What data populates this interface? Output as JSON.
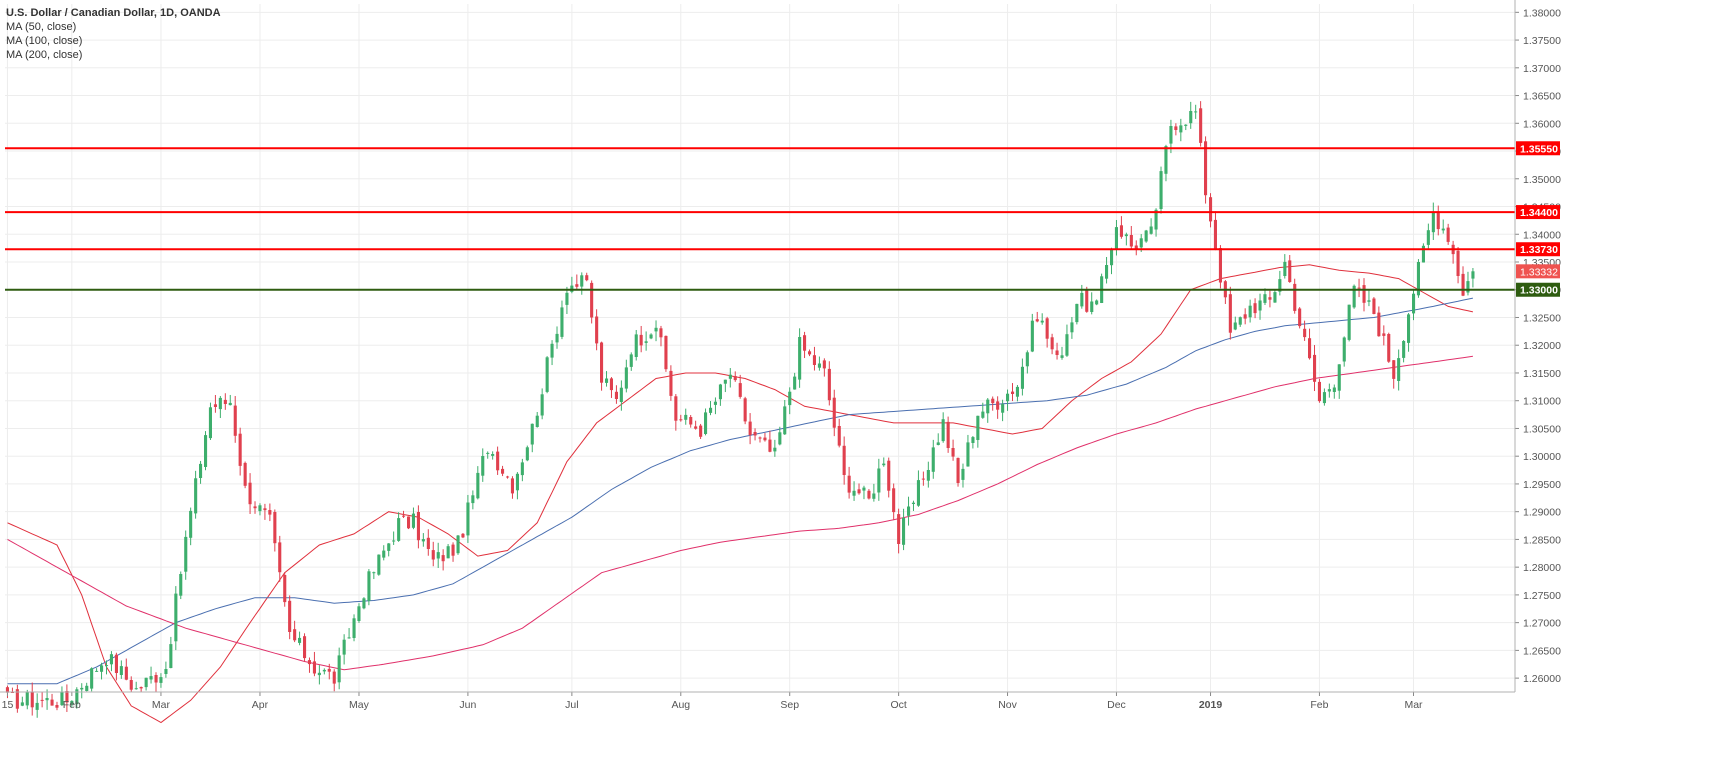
{
  "chart_data": {
    "type": "candlestick",
    "title": "U.S. Dollar / Canadian Dollar, 1D, OANDA",
    "indicators": [
      "MA (50, close)",
      "MA (100, close)",
      "MA (200, close)"
    ],
    "ylim": [
      1.2575,
      1.3815
    ],
    "y_ticks": [
      "1.38000",
      "1.37500",
      "1.37000",
      "1.36500",
      "1.36000",
      "1.35500",
      "1.35000",
      "1.34500",
      "1.34000",
      "1.33500",
      "1.33000",
      "1.32500",
      "1.32000",
      "1.31500",
      "1.31000",
      "1.30500",
      "1.30000",
      "1.29500",
      "1.29000",
      "1.28500",
      "1.28000",
      "1.27500",
      "1.27000",
      "1.26500",
      "1.26000"
    ],
    "x_labels": [
      "15",
      "Feb",
      "Mar",
      "Apr",
      "May",
      "Jun",
      "Jul",
      "Aug",
      "Sep",
      "Oct",
      "Nov",
      "Dec",
      "2019",
      "Feb",
      "Mar"
    ],
    "x_label_index": [
      0,
      13,
      31,
      51,
      71,
      93,
      114,
      136,
      158,
      180,
      202,
      224,
      243,
      265,
      284
    ],
    "bar_count": 305,
    "waypoints": [
      [
        0,
        1.256
      ],
      [
        8,
        1.256
      ],
      [
        12,
        1.256
      ],
      [
        16,
        1.26
      ],
      [
        20,
        1.264
      ],
      [
        26,
        1.258
      ],
      [
        32,
        1.262
      ],
      [
        36,
        1.285
      ],
      [
        41,
        1.309
      ],
      [
        45,
        1.31
      ],
      [
        48,
        1.294
      ],
      [
        53,
        1.288
      ],
      [
        57,
        1.268
      ],
      [
        62,
        1.262
      ],
      [
        66,
        1.26
      ],
      [
        72,
        1.276
      ],
      [
        79,
        1.288
      ],
      [
        82,
        1.288
      ],
      [
        86,
        1.281
      ],
      [
        91,
        1.284
      ],
      [
        97,
        1.302
      ],
      [
        102,
        1.295
      ],
      [
        106,
        1.305
      ],
      [
        110,
        1.32
      ],
      [
        113,
        1.331
      ],
      [
        117,
        1.331
      ],
      [
        120,
        1.314
      ],
      [
        123,
        1.31
      ],
      [
        126,
        1.32
      ],
      [
        131,
        1.324
      ],
      [
        135,
        1.307
      ],
      [
        140,
        1.305
      ],
      [
        146,
        1.315
      ],
      [
        150,
        1.304
      ],
      [
        155,
        1.3
      ],
      [
        160,
        1.32
      ],
      [
        165,
        1.315
      ],
      [
        169,
        1.296
      ],
      [
        174,
        1.292
      ],
      [
        177,
        1.3
      ],
      [
        180,
        1.285
      ],
      [
        184,
        1.294
      ],
      [
        189,
        1.306
      ],
      [
        192,
        1.295
      ],
      [
        196,
        1.308
      ],
      [
        200,
        1.31
      ],
      [
        204,
        1.313
      ],
      [
        208,
        1.326
      ],
      [
        212,
        1.317
      ],
      [
        216,
        1.328
      ],
      [
        220,
        1.327
      ],
      [
        224,
        1.342
      ],
      [
        227,
        1.338
      ],
      [
        231,
        1.34
      ],
      [
        235,
        1.36
      ],
      [
        240,
        1.362
      ],
      [
        242,
        1.348
      ],
      [
        244,
        1.338
      ],
      [
        247,
        1.322
      ],
      [
        251,
        1.327
      ],
      [
        255,
        1.328
      ],
      [
        258,
        1.335
      ],
      [
        261,
        1.324
      ],
      [
        265,
        1.31
      ],
      [
        268,
        1.314
      ],
      [
        272,
        1.33
      ],
      [
        276,
        1.326
      ],
      [
        280,
        1.315
      ],
      [
        284,
        1.33
      ],
      [
        288,
        1.344
      ],
      [
        291,
        1.34
      ],
      [
        294,
        1.33
      ],
      [
        296,
        1.3333
      ]
    ],
    "moving_averages": [
      {
        "name": "MA (50, close)",
        "color": "#e0303c",
        "points": [
          [
            0,
            1.288
          ],
          [
            10,
            1.284
          ],
          [
            15,
            1.275
          ],
          [
            20,
            1.262
          ],
          [
            25,
            1.255
          ],
          [
            31,
            1.252
          ],
          [
            37,
            1.256
          ],
          [
            43,
            1.262
          ],
          [
            49,
            1.27
          ],
          [
            56,
            1.279
          ],
          [
            63,
            1.284
          ],
          [
            70,
            1.286
          ],
          [
            77,
            1.29
          ],
          [
            83,
            1.289
          ],
          [
            89,
            1.286
          ],
          [
            95,
            1.282
          ],
          [
            101,
            1.283
          ],
          [
            107,
            1.288
          ],
          [
            113,
            1.299
          ],
          [
            119,
            1.306
          ],
          [
            125,
            1.31
          ],
          [
            131,
            1.314
          ],
          [
            137,
            1.315
          ],
          [
            143,
            1.315
          ],
          [
            149,
            1.314
          ],
          [
            155,
            1.312
          ],
          [
            161,
            1.309
          ],
          [
            167,
            1.308
          ],
          [
            173,
            1.307
          ],
          [
            179,
            1.306
          ],
          [
            185,
            1.306
          ],
          [
            191,
            1.306
          ],
          [
            197,
            1.305
          ],
          [
            203,
            1.304
          ],
          [
            209,
            1.305
          ],
          [
            215,
            1.31
          ],
          [
            221,
            1.314
          ],
          [
            227,
            1.317
          ],
          [
            233,
            1.322
          ],
          [
            239,
            1.33
          ],
          [
            245,
            1.332
          ],
          [
            251,
            1.333
          ],
          [
            257,
            1.334
          ],
          [
            263,
            1.3345
          ],
          [
            269,
            1.3335
          ],
          [
            275,
            1.333
          ],
          [
            281,
            1.332
          ],
          [
            287,
            1.329
          ],
          [
            291,
            1.327
          ],
          [
            296,
            1.326
          ]
        ]
      },
      {
        "name": "MA (100, close)",
        "color": "#4a6fb0",
        "points": [
          [
            0,
            1.259
          ],
          [
            10,
            1.259
          ],
          [
            18,
            1.262
          ],
          [
            26,
            1.266
          ],
          [
            34,
            1.27
          ],
          [
            42,
            1.2725
          ],
          [
            50,
            1.2745
          ],
          [
            58,
            1.2745
          ],
          [
            66,
            1.2735
          ],
          [
            74,
            1.274
          ],
          [
            82,
            1.275
          ],
          [
            90,
            1.277
          ],
          [
            98,
            1.281
          ],
          [
            106,
            1.285
          ],
          [
            114,
            1.289
          ],
          [
            122,
            1.294
          ],
          [
            130,
            1.298
          ],
          [
            138,
            1.301
          ],
          [
            146,
            1.303
          ],
          [
            154,
            1.3045
          ],
          [
            162,
            1.306
          ],
          [
            170,
            1.3075
          ],
          [
            178,
            1.308
          ],
          [
            186,
            1.3085
          ],
          [
            194,
            1.309
          ],
          [
            202,
            1.3095
          ],
          [
            210,
            1.31
          ],
          [
            218,
            1.311
          ],
          [
            226,
            1.313
          ],
          [
            234,
            1.316
          ],
          [
            240,
            1.319
          ],
          [
            246,
            1.321
          ],
          [
            252,
            1.3225
          ],
          [
            258,
            1.3235
          ],
          [
            264,
            1.324
          ],
          [
            270,
            1.3245
          ],
          [
            276,
            1.325
          ],
          [
            282,
            1.326
          ],
          [
            288,
            1.327
          ],
          [
            296,
            1.3285
          ]
        ]
      },
      {
        "name": "MA (200, close)",
        "color": "#e0306a",
        "points": [
          [
            0,
            1.285
          ],
          [
            12,
            1.279
          ],
          [
            24,
            1.273
          ],
          [
            36,
            1.269
          ],
          [
            48,
            1.266
          ],
          [
            60,
            1.263
          ],
          [
            68,
            1.2615
          ],
          [
            76,
            1.2625
          ],
          [
            86,
            1.264
          ],
          [
            96,
            1.266
          ],
          [
            104,
            1.269
          ],
          [
            112,
            1.274
          ],
          [
            120,
            1.279
          ],
          [
            128,
            1.281
          ],
          [
            136,
            1.283
          ],
          [
            144,
            1.2845
          ],
          [
            152,
            1.2855
          ],
          [
            160,
            1.2865
          ],
          [
            168,
            1.287
          ],
          [
            176,
            1.288
          ],
          [
            184,
            1.2895
          ],
          [
            192,
            1.292
          ],
          [
            200,
            1.295
          ],
          [
            208,
            1.2985
          ],
          [
            216,
            1.3015
          ],
          [
            224,
            1.304
          ],
          [
            232,
            1.306
          ],
          [
            240,
            1.3085
          ],
          [
            248,
            1.3105
          ],
          [
            256,
            1.3125
          ],
          [
            264,
            1.314
          ],
          [
            272,
            1.315
          ],
          [
            280,
            1.316
          ],
          [
            288,
            1.317
          ],
          [
            296,
            1.318
          ]
        ]
      }
    ],
    "levels": [
      {
        "label": "1.35550",
        "value": 1.3555,
        "color": "#ff0000"
      },
      {
        "label": "1.34400",
        "value": 1.344,
        "color": "#ff0000"
      },
      {
        "label": "1.33730",
        "value": 1.3373,
        "color": "#ff0000"
      },
      {
        "label": "1.33000",
        "value": 1.33,
        "color": "#2e5c10"
      }
    ],
    "current_price": {
      "label": "1.33332",
      "value": 1.33332,
      "color": "#ef5350"
    },
    "colors": {
      "up": "#3dae6c",
      "down": "#e0404e",
      "grid": "#ededed",
      "axis_text": "#555555"
    }
  }
}
